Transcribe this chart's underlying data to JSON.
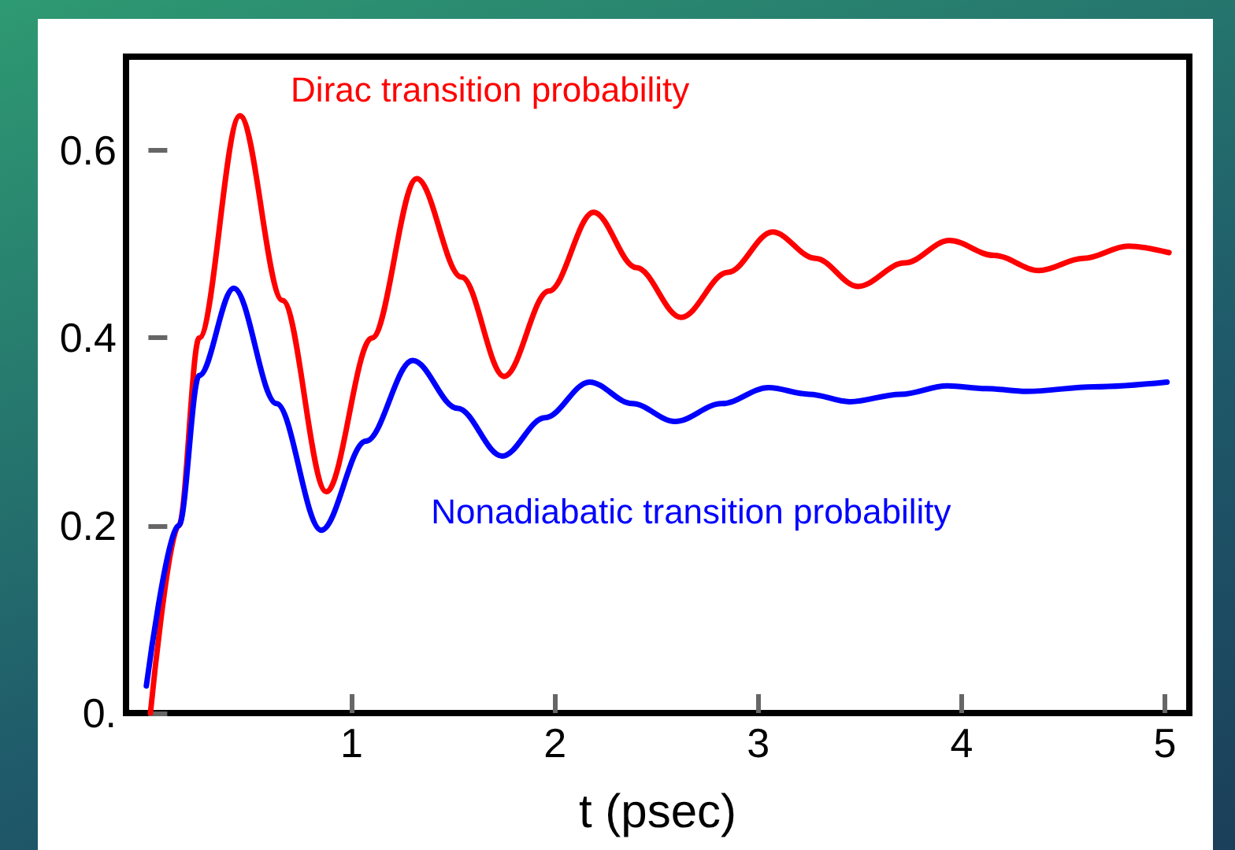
{
  "chart_data": {
    "type": "line",
    "xlabel": "t (psec)",
    "xlim": [
      -0.11,
      5.12
    ],
    "ylim": [
      0,
      0.7
    ],
    "xticks": [
      1,
      2,
      3,
      4,
      5
    ],
    "yticks": [
      {
        "value": 0,
        "label": "0."
      },
      0.2,
      0.4,
      0.6
    ],
    "marker": "none",
    "line_style": "solid",
    "legend": false,
    "series": [
      {
        "name": "Dirac transition probability",
        "color": "#ff0000",
        "x": [
          0.01,
          0.15,
          0.25,
          0.45,
          0.66,
          0.875,
          1.1,
          1.32,
          1.54,
          1.75,
          1.97,
          2.19,
          2.4,
          2.62,
          2.85,
          3.07,
          3.28,
          3.49,
          3.72,
          3.94,
          4.16,
          4.38,
          4.6,
          4.82,
          5.02
        ],
        "values": [
          0.0,
          0.2,
          0.4,
          0.637,
          0.44,
          0.236,
          0.4,
          0.57,
          0.465,
          0.359,
          0.45,
          0.534,
          0.475,
          0.422,
          0.47,
          0.513,
          0.485,
          0.455,
          0.48,
          0.504,
          0.488,
          0.472,
          0.485,
          0.498,
          0.491
        ]
      },
      {
        "name": "Nonadiabatic transition probability",
        "color": "#0000ff",
        "x": [
          -0.01,
          0.15,
          0.25,
          0.42,
          0.63,
          0.85,
          1.07,
          1.3,
          1.52,
          1.74,
          1.95,
          2.17,
          2.38,
          2.59,
          2.82,
          3.05,
          3.25,
          3.45,
          3.7,
          3.93,
          4.12,
          4.32,
          4.65,
          5.01
        ],
        "values": [
          0.029,
          0.2,
          0.36,
          0.453,
          0.33,
          0.195,
          0.29,
          0.376,
          0.325,
          0.274,
          0.315,
          0.353,
          0.33,
          0.311,
          0.33,
          0.347,
          0.34,
          0.332,
          0.34,
          0.349,
          0.346,
          0.343,
          0.348,
          0.353
        ]
      }
    ]
  }
}
